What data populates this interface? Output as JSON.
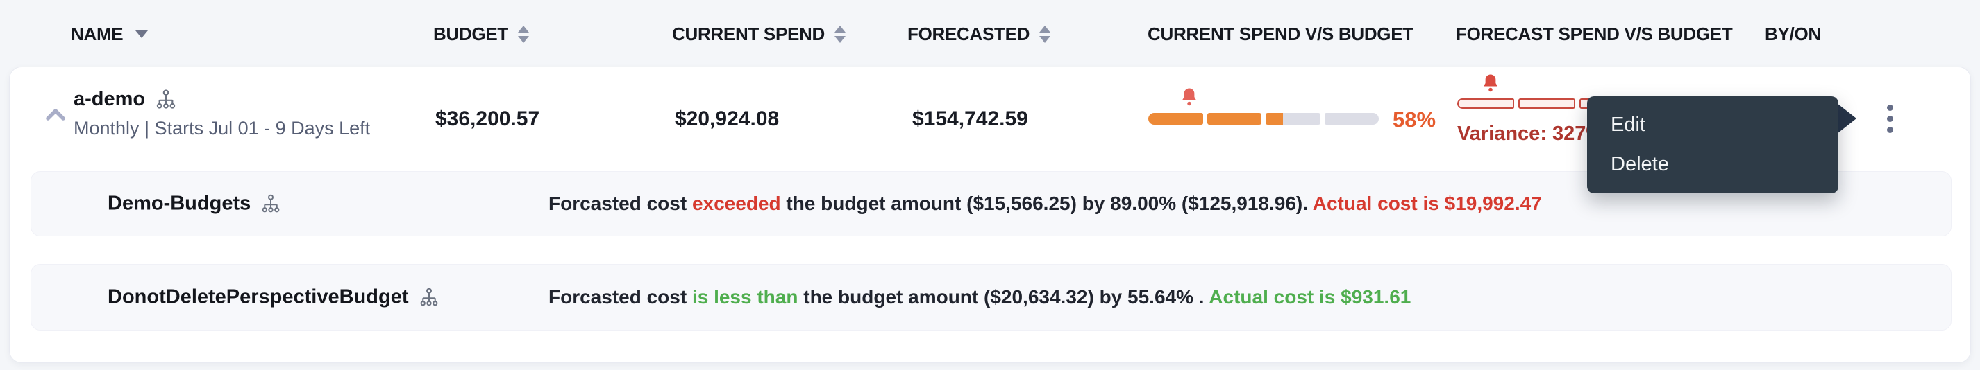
{
  "header": {
    "columns": [
      {
        "label": "NAME"
      },
      {
        "label": "BUDGET"
      },
      {
        "label": "CURRENT SPEND"
      },
      {
        "label": "FORECASTED"
      },
      {
        "label": "CURRENT SPEND V/S BUDGET"
      },
      {
        "label": "FORECAST SPEND V/S BUDGET"
      },
      {
        "label": "BY/ON"
      }
    ]
  },
  "budget_row": {
    "name": "a-demo",
    "schedule": "Monthly | Starts Jul 01 - 9 Days Left",
    "budget": "$36,200.57",
    "current_spend": "$20,924.08",
    "forecasted": "$154,742.59",
    "current_vs_budget": {
      "percent": 58,
      "segments": 4,
      "label": "58%",
      "alert": true
    },
    "forecast_vs_budget": {
      "percent": 0,
      "segments": 4,
      "variance_label": "Variance: 327%",
      "alert": true
    }
  },
  "context_menu": {
    "items": [
      {
        "label": "Edit"
      },
      {
        "label": "Delete"
      }
    ]
  },
  "sub_rows": [
    {
      "name": "Demo-Budgets",
      "message": [
        {
          "text": "Forcasted cost ",
          "tone": "default"
        },
        {
          "text": "exceeded",
          "tone": "red"
        },
        {
          "text": " the budget amount ($15,566.25) by 89.00% ($125,918.96). ",
          "tone": "default"
        },
        {
          "text": "Actual cost is $19,992.47",
          "tone": "red"
        }
      ]
    },
    {
      "name": "DonotDeletePerspectiveBudget",
      "message": [
        {
          "text": "Forcasted cost ",
          "tone": "default"
        },
        {
          "text": "is less than",
          "tone": "green"
        },
        {
          "text": " the budget amount ($20,634.32) by 55.64% . ",
          "tone": "default"
        },
        {
          "text": "Actual cost is $931.61",
          "tone": "green"
        }
      ]
    }
  ],
  "colors": {
    "accent_orange": "#ED8936",
    "percent_label_orange": "#E65C2E",
    "alert_bell_red": "#E4635A",
    "variance_dark_red": "#AE362E",
    "negative_red": "#D63A2F",
    "positive_green": "#4FAE4E",
    "menu_background": "#2E3B47",
    "track_gray": "#DCDDE6"
  }
}
